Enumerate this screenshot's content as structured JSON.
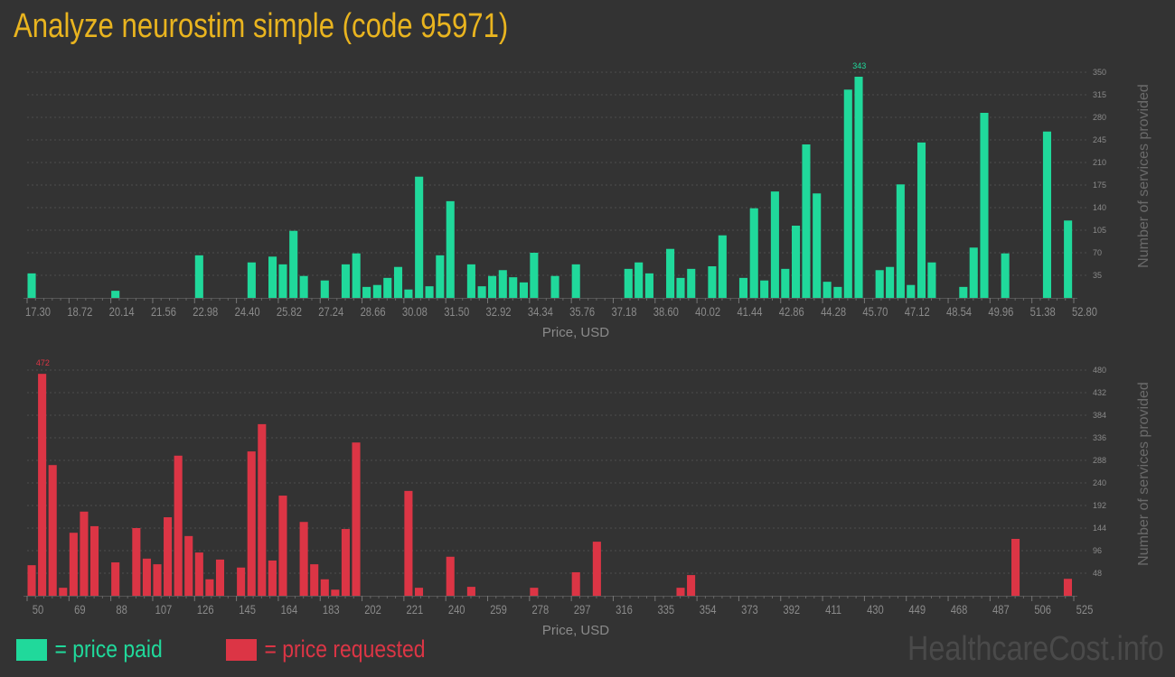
{
  "title": "Analyze neurostim simple (code 95971)",
  "colors": {
    "background": "#333333",
    "title": "#e9b41f",
    "paid": "#20d99b",
    "requested": "#dc3545",
    "axis_text": "#8a8a8a",
    "grid": "#4d4d4d"
  },
  "legend": {
    "paid_label": "= price paid",
    "requested_label": "= price requested"
  },
  "watermark": "HealthcareCost.info",
  "chart_data": [
    {
      "type": "bar",
      "series_key": "paid",
      "xlabel": "Price, USD",
      "ylabel": "Number of services provided",
      "xlim": [
        17.3,
        52.8
      ],
      "bin_width": 0.355,
      "ylim": [
        0,
        350
      ],
      "x_ticks": [
        "17.30",
        "18.72",
        "20.14",
        "21.56",
        "22.98",
        "24.40",
        "25.82",
        "27.24",
        "28.66",
        "30.08",
        "31.50",
        "32.92",
        "34.34",
        "35.76",
        "37.18",
        "38.60",
        "40.02",
        "41.44",
        "42.86",
        "44.28",
        "45.70",
        "47.12",
        "48.54",
        "49.96",
        "51.38",
        "52.80"
      ],
      "y_ticks": [
        "35",
        "70",
        "105",
        "140",
        "175",
        "210",
        "245",
        "280",
        "315",
        "350"
      ],
      "grid": true,
      "max_label": "343",
      "bars": [
        {
          "x": 17.3,
          "y": 38
        },
        {
          "x": 20.14,
          "y": 11
        },
        {
          "x": 22.98,
          "y": 66
        },
        {
          "x": 24.76,
          "y": 55
        },
        {
          "x": 25.47,
          "y": 64
        },
        {
          "x": 25.82,
          "y": 52
        },
        {
          "x": 26.18,
          "y": 104
        },
        {
          "x": 26.53,
          "y": 34
        },
        {
          "x": 27.24,
          "y": 27
        },
        {
          "x": 27.95,
          "y": 52
        },
        {
          "x": 28.31,
          "y": 69
        },
        {
          "x": 28.66,
          "y": 17
        },
        {
          "x": 29.02,
          "y": 20
        },
        {
          "x": 29.37,
          "y": 31
        },
        {
          "x": 29.73,
          "y": 48
        },
        {
          "x": 30.08,
          "y": 13
        },
        {
          "x": 30.44,
          "y": 188
        },
        {
          "x": 30.79,
          "y": 18
        },
        {
          "x": 31.15,
          "y": 66
        },
        {
          "x": 31.5,
          "y": 150
        },
        {
          "x": 32.21,
          "y": 52
        },
        {
          "x": 32.57,
          "y": 18
        },
        {
          "x": 32.92,
          "y": 34
        },
        {
          "x": 33.28,
          "y": 43
        },
        {
          "x": 33.63,
          "y": 32
        },
        {
          "x": 33.99,
          "y": 24
        },
        {
          "x": 34.34,
          "y": 70
        },
        {
          "x": 35.05,
          "y": 34
        },
        {
          "x": 35.76,
          "y": 52
        },
        {
          "x": 37.54,
          "y": 45
        },
        {
          "x": 37.89,
          "y": 55
        },
        {
          "x": 38.25,
          "y": 38
        },
        {
          "x": 38.96,
          "y": 76
        },
        {
          "x": 39.31,
          "y": 31
        },
        {
          "x": 39.67,
          "y": 45
        },
        {
          "x": 40.38,
          "y": 49
        },
        {
          "x": 40.73,
          "y": 97
        },
        {
          "x": 41.44,
          "y": 31
        },
        {
          "x": 41.8,
          "y": 139
        },
        {
          "x": 42.15,
          "y": 27
        },
        {
          "x": 42.51,
          "y": 165
        },
        {
          "x": 42.86,
          "y": 45
        },
        {
          "x": 43.22,
          "y": 112
        },
        {
          "x": 43.57,
          "y": 238
        },
        {
          "x": 43.93,
          "y": 162
        },
        {
          "x": 44.28,
          "y": 25
        },
        {
          "x": 44.64,
          "y": 17
        },
        {
          "x": 44.99,
          "y": 323
        },
        {
          "x": 45.35,
          "y": 343
        },
        {
          "x": 46.06,
          "y": 43
        },
        {
          "x": 46.41,
          "y": 48
        },
        {
          "x": 46.77,
          "y": 176
        },
        {
          "x": 47.12,
          "y": 20
        },
        {
          "x": 47.48,
          "y": 241
        },
        {
          "x": 47.83,
          "y": 55
        },
        {
          "x": 48.9,
          "y": 17
        },
        {
          "x": 49.25,
          "y": 78
        },
        {
          "x": 49.61,
          "y": 287
        },
        {
          "x": 50.32,
          "y": 69
        },
        {
          "x": 51.74,
          "y": 258
        },
        {
          "x": 52.45,
          "y": 120
        }
      ]
    },
    {
      "type": "bar",
      "series_key": "requested",
      "xlabel": "Price, USD",
      "ylabel": "Number of services provided",
      "xlim": [
        50,
        525
      ],
      "bin_width": 4.75,
      "ylim": [
        0,
        480
      ],
      "x_ticks": [
        "50",
        "69",
        "88",
        "107",
        "126",
        "145",
        "164",
        "183",
        "202",
        "221",
        "240",
        "259",
        "278",
        "297",
        "316",
        "335",
        "354",
        "373",
        "392",
        "411",
        "430",
        "449",
        "468",
        "487",
        "506",
        "525"
      ],
      "y_ticks": [
        "48",
        "96",
        "144",
        "192",
        "240",
        "288",
        "336",
        "384",
        "432",
        "480"
      ],
      "grid": true,
      "max_label": "472",
      "bars": [
        {
          "x": 50,
          "y": 65
        },
        {
          "x": 54.75,
          "y": 472
        },
        {
          "x": 59.5,
          "y": 278
        },
        {
          "x": 64.25,
          "y": 17
        },
        {
          "x": 69,
          "y": 134
        },
        {
          "x": 73.75,
          "y": 179
        },
        {
          "x": 78.5,
          "y": 148
        },
        {
          "x": 88,
          "y": 71
        },
        {
          "x": 97.5,
          "y": 144
        },
        {
          "x": 102.25,
          "y": 79
        },
        {
          "x": 107,
          "y": 67
        },
        {
          "x": 111.75,
          "y": 167
        },
        {
          "x": 116.5,
          "y": 298
        },
        {
          "x": 121.25,
          "y": 127
        },
        {
          "x": 126,
          "y": 92
        },
        {
          "x": 130.75,
          "y": 35
        },
        {
          "x": 135.5,
          "y": 77
        },
        {
          "x": 145,
          "y": 60
        },
        {
          "x": 149.75,
          "y": 307
        },
        {
          "x": 154.5,
          "y": 365
        },
        {
          "x": 159.25,
          "y": 75
        },
        {
          "x": 164,
          "y": 213
        },
        {
          "x": 173.5,
          "y": 157
        },
        {
          "x": 178.25,
          "y": 67
        },
        {
          "x": 183,
          "y": 35
        },
        {
          "x": 187.75,
          "y": 13
        },
        {
          "x": 192.5,
          "y": 142
        },
        {
          "x": 197.25,
          "y": 326
        },
        {
          "x": 221,
          "y": 223
        },
        {
          "x": 225.75,
          "y": 17
        },
        {
          "x": 240,
          "y": 83
        },
        {
          "x": 249.5,
          "y": 19
        },
        {
          "x": 278,
          "y": 17
        },
        {
          "x": 297,
          "y": 50
        },
        {
          "x": 306.5,
          "y": 115
        },
        {
          "x": 344.5,
          "y": 17
        },
        {
          "x": 349.25,
          "y": 44
        },
        {
          "x": 496.5,
          "y": 121
        },
        {
          "x": 520.25,
          "y": 36
        }
      ]
    }
  ]
}
